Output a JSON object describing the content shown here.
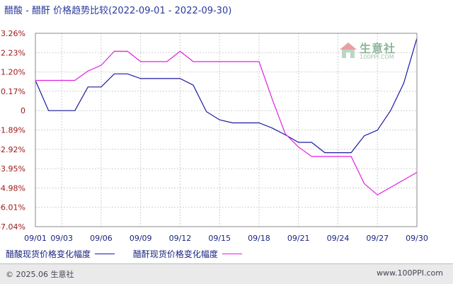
{
  "title": "醋酸 - 醋酐 价格趋势比较(2022-09-01 - 2022-09-30)",
  "watermark": {
    "name": "生意社",
    "url": "100PPI.COM"
  },
  "footer": {
    "copyright": "© 2025.06 生意社",
    "site": "www.100PPI.com"
  },
  "chart_data": {
    "type": "line",
    "title": "醋酸 - 醋酐 价格趋势比较(2022-09-01 - 2022-09-30)",
    "xlabel": "",
    "ylabel": "",
    "x": [
      "09/01",
      "09/02",
      "09/03",
      "09/04",
      "09/05",
      "09/06",
      "09/07",
      "09/08",
      "09/09",
      "09/10",
      "09/11",
      "09/12",
      "09/13",
      "09/14",
      "09/15",
      "09/16",
      "09/17",
      "09/18",
      "09/19",
      "09/20",
      "09/21",
      "09/22",
      "09/23",
      "09/24",
      "09/25",
      "09/26",
      "09/27",
      "09/28",
      "09/29",
      "09/30"
    ],
    "xticks": [
      "09/01",
      "09/03",
      "09/06",
      "09/09",
      "09/12",
      "09/15",
      "09/18",
      "09/21",
      "09/24",
      "09/27",
      "09/30"
    ],
    "yticks": [
      3.26,
      2.23,
      1.2,
      0.17,
      0,
      -1.89,
      -2.92,
      -3.95,
      -4.98,
      -6.01,
      -7.04
    ],
    "ytick_labels": [
      "3.26%",
      "2.23%",
      "1.20%",
      "0.17%",
      "0",
      "-1.89%",
      "-2.92%",
      "-3.95%",
      "-4.98%",
      "-6.01%",
      "-7.04%"
    ],
    "ylim": [
      -7.04,
      3.26
    ],
    "grid": true,
    "legend": "bottom",
    "series": [
      {
        "name": "醋酸现货价格变化幅度",
        "color": "#1a1aa0",
        "values": [
          0.75,
          0,
          0,
          0,
          0.4,
          0.4,
          1.1,
          1.1,
          0.85,
          0.85,
          0.85,
          0.85,
          0.5,
          -0.1,
          -0.9,
          -1.2,
          -1.2,
          -1.2,
          -1.7,
          -2.15,
          -2.55,
          -2.55,
          -3.1,
          -3.1,
          -3.1,
          -2.2,
          -1.9,
          0,
          0.6,
          3.0
        ]
      },
      {
        "name": "醋酐现货价格变化幅度",
        "color": "#e020e0",
        "values": [
          0.75,
          0.75,
          0.75,
          0.75,
          1.25,
          1.55,
          2.3,
          2.3,
          1.75,
          1.75,
          1.75,
          2.3,
          1.75,
          1.75,
          1.75,
          1.75,
          1.75,
          1.75,
          0.1,
          -2.1,
          -2.8,
          -3.3,
          -3.3,
          -3.3,
          -3.3,
          -4.75,
          -5.35,
          -4.95,
          -4.55,
          -4.15
        ]
      }
    ]
  }
}
